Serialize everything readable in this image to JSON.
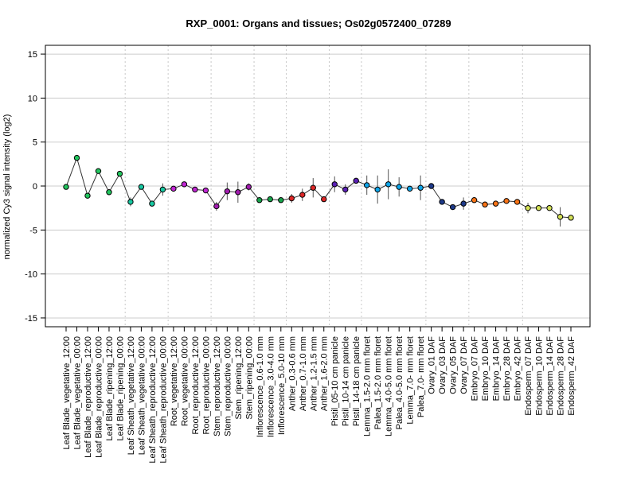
{
  "chart_data": {
    "type": "line",
    "title": "RXP_0001: Organs and tissues; Os02g0572400_07289",
    "xlabel": "",
    "ylabel": "normalized Cy3 signal intensity (log2)",
    "ylim": [
      -16,
      16
    ],
    "yticks": [
      -15,
      -10,
      -5,
      0,
      5,
      10,
      15
    ],
    "grid": "horizontal at y ticks; dotted vertical separators between sample groups",
    "categories": [
      "Leaf Blade_vegetative_12:00",
      "Leaf Blade_vegetative_00:00",
      "Leaf Blade_reproductive_12:00",
      "Leaf Blade_reproductive_00:00",
      "Leaf Blade_ripening_12:00",
      "Leaf Blade_ripening_00:00",
      "Leaf Sheath_vegetative_12:00",
      "Leaf Sheath_vegetative_00:00",
      "Leaf Sheath_reproductive_12:00",
      "Leaf Sheath_reproductive_00:00",
      "Root_vegetative_12:00",
      "Root_vegetative_00:00",
      "Root_reproductive_12:00",
      "Root_reproductive_00:00",
      "Stem_reproductive_12:00",
      "Stem_reproductive_00:00",
      "Stem_ripening_12:00",
      "Stem_ripening_00:00",
      "Inflorescence_0.6-1.0 mm",
      "Inflorescence_3.0-4.0 mm",
      "Inflorescence_5.0-10 mm",
      "Anther_0.3-0.6 mm",
      "Anther_0.7-1.0 mm",
      "Anther_1.2-1.5 mm",
      "Anther_1.6-2.0 mm",
      "Pistil_05-10 cm panicle",
      "Pistil_10-14 cm panicle",
      "Pistil_14-18 cm panicle",
      "Lemma_1.5-2.0 mm floret",
      "Palea_1.5-2.0 mm floret",
      "Lemma_4.0-5.0 mm floret",
      "Palea_4.0-5.0 mm floret",
      "Lemma_7.0- mm floret",
      "Palea_7.0- mm floret",
      "Ovary_01 DAF",
      "Ovary_03 DAF",
      "Ovary_05 DAF",
      "Ovary_07 DAF",
      "Embryo_07 DAF",
      "Embryo_10 DAF",
      "Embryo_14 DAF",
      "Embryo_28 DAF",
      "Embryo_42 DAF",
      "Endosperm_07 DAF",
      "Endosperm_10 DAF",
      "Endosperm_14 DAF",
      "Endosperm_28 DAF",
      "Endosperm_42 DAF"
    ],
    "values": [
      -0.1,
      3.2,
      -1.1,
      1.7,
      -0.7,
      1.4,
      -1.8,
      -0.1,
      -2.0,
      -0.4,
      -0.3,
      0.2,
      -0.4,
      -0.5,
      -2.3,
      -0.6,
      -0.7,
      -0.1,
      -1.6,
      -1.5,
      -1.6,
      -1.4,
      -1.0,
      -0.2,
      -1.5,
      0.2,
      -0.4,
      0.6,
      0.1,
      -0.4,
      0.2,
      -0.1,
      -0.3,
      -0.2,
      0.0,
      -1.8,
      -2.4,
      -2.0,
      -1.6,
      -2.1,
      -2.0,
      -1.7,
      -1.8,
      -2.5,
      -2.5,
      -2.5,
      -3.5,
      -3.6
    ],
    "errors": [
      0.3,
      0.3,
      0.2,
      0.2,
      0.2,
      0.2,
      0.5,
      0.2,
      0.3,
      0.7,
      0.2,
      0.2,
      0.2,
      0.2,
      0.5,
      1.0,
      1.2,
      0.4,
      0.2,
      0.3,
      0.2,
      0.5,
      0.7,
      1.1,
      0.2,
      0.9,
      0.6,
      0.3,
      1.1,
      1.6,
      1.7,
      1.1,
      0.3,
      1.4,
      0.3,
      0.2,
      0.2,
      0.7,
      0.2,
      0.2,
      0.3,
      0.2,
      0.2,
      0.6,
      0.2,
      0.3,
      1.1,
      0.3
    ],
    "colors": [
      "#22c55e",
      "#22c55e",
      "#22c55e",
      "#22c55e",
      "#22c55e",
      "#22c55e",
      "#17c9a2",
      "#17c9a2",
      "#17c9a2",
      "#17c9a2",
      "#c026d3",
      "#c026d3",
      "#c026d3",
      "#c026d3",
      "#a21caf",
      "#a21caf",
      "#a21caf",
      "#a21caf",
      "#16a34a",
      "#16a34a",
      "#16a34a",
      "#dc2626",
      "#dc2626",
      "#dc2626",
      "#dc2626",
      "#5b21b6",
      "#5b21b6",
      "#5b21b6",
      "#0ea5e9",
      "#0ea5e9",
      "#0ea5e9",
      "#0ea5e9",
      "#0ea5e9",
      "#0ea5e9",
      "#1e3a8a",
      "#1e3a8a",
      "#1e3a8a",
      "#1e3a8a",
      "#f97316",
      "#f97316",
      "#f97316",
      "#f97316",
      "#f97316",
      "#d4e157",
      "#d4e157",
      "#d4e157",
      "#d4e157",
      "#d4e157"
    ],
    "group_separators_after": [
      5,
      9,
      13,
      17,
      20,
      24,
      27,
      33,
      37,
      42
    ],
    "line_color": "#333333"
  }
}
